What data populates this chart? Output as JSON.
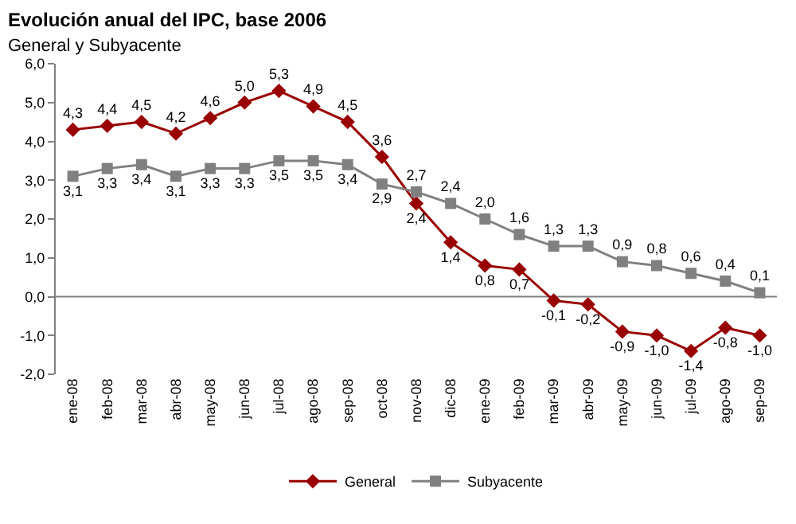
{
  "chart_data": {
    "type": "line",
    "title": "Evolución anual del IPC, base 2006",
    "subtitle": "General y Subyacente",
    "categories": [
      "ene-08",
      "feb-08",
      "mar-08",
      "abr-08",
      "may-08",
      "jun-08",
      "jul-08",
      "ago-08",
      "sep-08",
      "oct-08",
      "nov-08",
      "dic-08",
      "ene-09",
      "feb-09",
      "mar-09",
      "abr-09",
      "may-09",
      "jun-09",
      "jul-09",
      "ago-09",
      "sep-09"
    ],
    "series": [
      {
        "name": "General",
        "color": "#990000",
        "marker": "diamond",
        "values": [
          4.3,
          4.4,
          4.5,
          4.2,
          4.6,
          5.0,
          5.3,
          4.9,
          4.5,
          3.6,
          2.4,
          1.4,
          0.8,
          0.7,
          -0.1,
          -0.2,
          -0.9,
          -1.0,
          -1.4,
          -0.8,
          -1.0
        ],
        "value_labels": [
          "4,3",
          "4,4",
          "4,5",
          "4,2",
          "4,6",
          "5,0",
          "5,3",
          "4,9",
          "4,5",
          "3,6",
          "2,4",
          "1,4",
          "0,8",
          "0,7",
          "-0,1",
          "-0,2",
          "-0,9",
          "-1,0",
          "-1,4",
          "-0,8",
          "-1,0"
        ]
      },
      {
        "name": "Subyacente",
        "color": "#808080",
        "marker": "square",
        "values": [
          3.1,
          3.3,
          3.4,
          3.1,
          3.3,
          3.3,
          3.5,
          3.5,
          3.4,
          2.9,
          2.7,
          2.4,
          2.0,
          1.6,
          1.3,
          1.3,
          0.9,
          0.8,
          0.6,
          0.4,
          0.1
        ],
        "value_labels": [
          "3,1",
          "3,3",
          "3,4",
          "3,1",
          "3,3",
          "3,3",
          "3,5",
          "3,5",
          "3,4",
          "2,9",
          "2,7",
          "2,4",
          "2,0",
          "1,6",
          "1,3",
          "1,3",
          "0,9",
          "0,8",
          "0,6",
          "0,4",
          "0,1"
        ]
      }
    ],
    "ylim": [
      -2,
      6
    ],
    "yticks": [
      {
        "value": -2,
        "label": "-2,0"
      },
      {
        "value": -1,
        "label": "-1,0"
      },
      {
        "value": 0,
        "label": "0,0"
      },
      {
        "value": 1,
        "label": "1,0"
      },
      {
        "value": 2,
        "label": "2,0"
      },
      {
        "value": 3,
        "label": "3,0"
      },
      {
        "value": 4,
        "label": "4,0"
      },
      {
        "value": 5,
        "label": "5,0"
      },
      {
        "value": 6,
        "label": "6,0"
      }
    ],
    "ref_lines": [
      {
        "axis": "y",
        "value": 0,
        "color": "#808080"
      }
    ],
    "grid": false,
    "legend": "bottom",
    "line_style": "solid"
  }
}
